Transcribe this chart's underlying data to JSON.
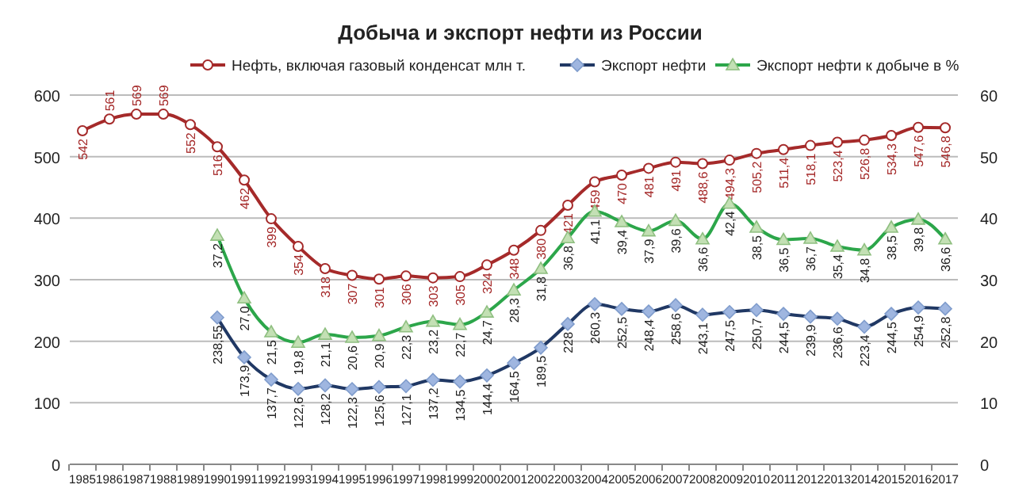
{
  "chart_data": {
    "type": "line",
    "title": "Добыча и экспорт нефти из России",
    "categories": [
      "1985",
      "1986",
      "1987",
      "1988",
      "1989",
      "1990",
      "1991",
      "1992",
      "1993",
      "1994",
      "1995",
      "1996",
      "1997",
      "1998",
      "1999",
      "2000",
      "2001",
      "2002",
      "2003",
      "2004",
      "2005",
      "2006",
      "2007",
      "2008",
      "2009",
      "2010",
      "2011",
      "2012",
      "2013",
      "2014",
      "2015",
      "2016",
      "2017"
    ],
    "series": [
      {
        "name": "Нефть, включая газовый конденсат млн т.",
        "color": "#a52a2a",
        "marker": "circle",
        "values": [
          542,
          561,
          569,
          569,
          552,
          516,
          462,
          399,
          354,
          318,
          307,
          301,
          306,
          303,
          305,
          324,
          348,
          380,
          421,
          459,
          470,
          481,
          491,
          488.6,
          494.3,
          505.2,
          511.4,
          518.1,
          523.4,
          526.8,
          534.3,
          547.6,
          546.8
        ],
        "value_labels": [
          "542",
          "561",
          "569",
          "569",
          "552",
          "516",
          "462",
          "399",
          "354",
          "318",
          "307",
          "301",
          "306",
          "303",
          "305",
          "324",
          "348",
          "380",
          "421",
          "459",
          "470",
          "481",
          "491",
          "488,6",
          "494,3",
          "505,2",
          "511,4",
          "518,1",
          "523,4",
          "526,8",
          "534,3",
          "547,6",
          "546,8"
        ]
      },
      {
        "name": "Экспорт нефти",
        "color": "#203864",
        "marker": "diamond",
        "values": [
          null,
          null,
          null,
          null,
          null,
          238.55,
          173.9,
          137.7,
          122.6,
          128.2,
          122.3,
          125.6,
          127.1,
          137.2,
          134.5,
          144.4,
          164.5,
          189.5,
          228,
          260.3,
          252.5,
          248.4,
          258.6,
          243.1,
          247.5,
          250.7,
          244.5,
          239.9,
          236.6,
          223.4,
          244.5,
          254.9,
          252.8
        ],
        "value_labels": [
          null,
          null,
          null,
          null,
          null,
          "238,55",
          "173,9",
          "137,7",
          "122,6",
          "128,2",
          "122,3",
          "125,6",
          "127,1",
          "137,2",
          "134,5",
          "144,4",
          "164,5",
          "189,5",
          "228",
          "260,3",
          "252,5",
          "248,4",
          "258,6",
          "243,1",
          "247,5",
          "250,7",
          "244,5",
          "239,9",
          "236,6",
          "223,4",
          "244,5",
          "254,9",
          "252,8"
        ]
      },
      {
        "name": "Экспорт нефти к добыче в %",
        "color": "#2ca64a",
        "marker": "triangle",
        "axis": "y2",
        "values": [
          null,
          null,
          null,
          null,
          null,
          37.2,
          27.0,
          21.5,
          19.8,
          21.1,
          20.6,
          20.9,
          22.3,
          23.2,
          22.7,
          24.7,
          28.3,
          31.8,
          36.8,
          41.1,
          39.4,
          37.9,
          39.6,
          36.6,
          42.4,
          38.5,
          36.5,
          36.7,
          35.4,
          34.8,
          38.5,
          39.8,
          36.6
        ],
        "value_labels": [
          null,
          null,
          null,
          null,
          null,
          "37,2",
          "27,0",
          "21,5",
          "19,8",
          "21,1",
          "20,6",
          "20,9",
          "22,3",
          "23,2",
          "22,7",
          "24,7",
          "28,3",
          "31,8",
          "36,8",
          "41,1",
          "39,4",
          "37,9",
          "39,6",
          "36,6",
          "42,4",
          "38,5",
          "36,5",
          "36,7",
          "35,4",
          "34,8",
          "38,5",
          "39,8",
          "36,6"
        ]
      }
    ],
    "ylim": [
      0,
      600
    ],
    "yticks": [
      0,
      100,
      200,
      300,
      400,
      500,
      600
    ],
    "y2lim": [
      0,
      60
    ],
    "y2ticks": [
      0,
      10,
      20,
      30,
      40,
      50,
      60
    ],
    "grid": "y",
    "legend": "top"
  }
}
